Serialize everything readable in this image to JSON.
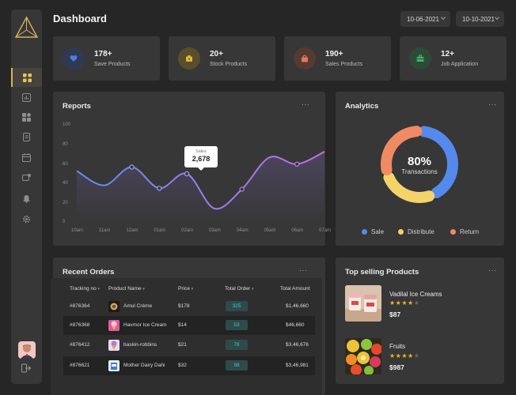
{
  "header": {
    "title": "Dashboard",
    "date_from": "10-06-2021",
    "date_to": "10-10-2021"
  },
  "stats": [
    {
      "value": "178+",
      "label": "Save Products",
      "icon": "heart-icon",
      "color": "#4d7ee8"
    },
    {
      "value": "20+",
      "label": "Stock Products",
      "icon": "box-icon",
      "color": "#e3b63a"
    },
    {
      "value": "190+",
      "label": "Sales Products",
      "icon": "bag-icon",
      "color": "#e8765a"
    },
    {
      "value": "12+",
      "label": "Job Application",
      "icon": "briefcase-icon",
      "color": "#3fb86a"
    }
  ],
  "sidebar": {
    "items": [
      "dashboard-icon",
      "chart-icon",
      "layers-icon",
      "document-icon",
      "calendar-icon",
      "chat-icon",
      "bell-icon",
      "settings-icon"
    ]
  },
  "reports": {
    "title": "Reports",
    "more": "···",
    "tooltip": {
      "label": "Sales",
      "value": "2,678"
    }
  },
  "chart_data": {
    "type": "line",
    "title": "Reports",
    "categories": [
      "10am",
      "11am",
      "12am",
      "01am",
      "02am",
      "03am",
      "04am",
      "05am",
      "06am",
      "07am"
    ],
    "yticks": [
      "100",
      "80",
      "60",
      "40",
      "20",
      "0"
    ],
    "ylim": [
      0,
      100
    ],
    "series": [
      {
        "values": [
          53,
          38,
          57,
          35,
          50,
          14,
          34,
          67,
          60,
          73
        ]
      }
    ],
    "highlight": {
      "category": "03am",
      "value": 2678
    },
    "grid": false
  },
  "analytics": {
    "title": "Analytics",
    "more": "···",
    "center_value": "80%",
    "center_label": "Transactions",
    "segments": [
      {
        "name": "Sale",
        "value": 43,
        "color": "#5589ec"
      },
      {
        "name": "Distribute",
        "value": 27,
        "color": "#f3d36a"
      },
      {
        "name": "Return",
        "value": 30,
        "color": "#ef8a63"
      }
    ]
  },
  "orders": {
    "title": "Recent Orders",
    "more": "···",
    "columns": [
      "Tracking no",
      "Product Name",
      "Price",
      "Total Order",
      "Total Amount"
    ],
    "rows": [
      {
        "tracking": "#876364",
        "product": "Amul Crème",
        "price": "$178",
        "total": "325",
        "amount": "$1,46,660"
      },
      {
        "tracking": "#876368",
        "product": "Havmor Ice Cream",
        "price": "$14",
        "total": "53",
        "amount": "$46,660"
      },
      {
        "tracking": "#876412",
        "product": "baskin-robbins",
        "price": "$21",
        "total": "78",
        "amount": "$3,46,676"
      },
      {
        "tracking": "#876621",
        "product": "Mother Dairy Dahi",
        "price": "$32",
        "total": "98",
        "amount": "$3,46,981"
      }
    ]
  },
  "top_products": {
    "title": "Top selling Products",
    "more": "···",
    "items": [
      {
        "name": "Vadilal Ice Creams",
        "rating": 4,
        "price": "$87"
      },
      {
        "name": "Fruits",
        "rating": 4,
        "price": "$987"
      }
    ]
  }
}
